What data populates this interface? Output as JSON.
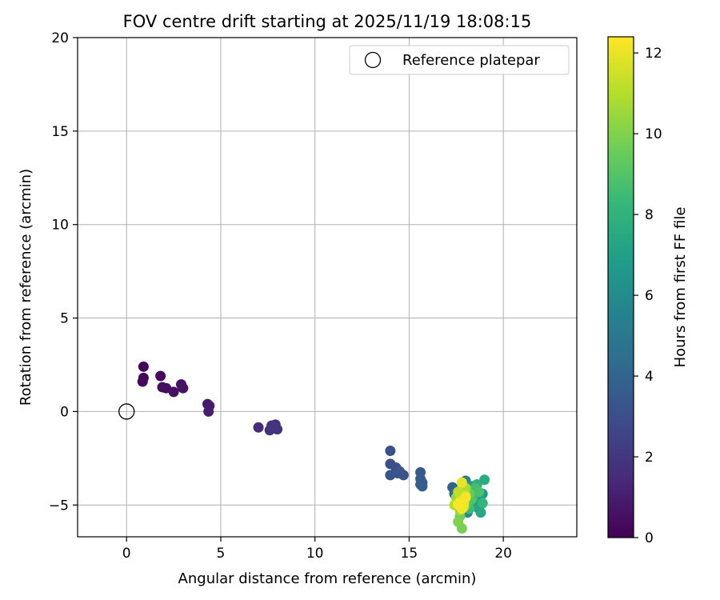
{
  "chart_data": {
    "type": "scatter",
    "title": "FOV centre drift starting at 2025/11/19 18:08:15",
    "xlabel": "Angular distance from reference (arcmin)",
    "ylabel": "Rotation from reference (arcmin)",
    "xlim": [
      -2.6,
      23.9
    ],
    "ylim": [
      -6.7,
      20
    ],
    "xticks": [
      0,
      5,
      10,
      15,
      20
    ],
    "yticks": [
      -5,
      0,
      5,
      10,
      15,
      20
    ],
    "grid": true,
    "legend": {
      "placement": "top-right",
      "entries": [
        "Reference platepar"
      ]
    },
    "reference_point": {
      "label": "Reference platepar",
      "x": 0,
      "y": 0
    },
    "colorbar": {
      "label": "Hours from first FF file",
      "range": [
        0,
        12.4
      ],
      "ticks": [
        0,
        2,
        4,
        6,
        8,
        10,
        12
      ],
      "colormap": [
        "#440154",
        "#482878",
        "#3e4989",
        "#31688e",
        "#26828e",
        "#1f9e89",
        "#35b779",
        "#6ece58",
        "#b5de2b",
        "#fde725"
      ]
    },
    "series": [
      {
        "name": "FOV centre drift",
        "points": [
          {
            "x": 0.9,
            "y": 2.4,
            "c": 0.1
          },
          {
            "x": 0.9,
            "y": 1.8,
            "c": 0.2
          },
          {
            "x": 0.85,
            "y": 1.6,
            "c": 0.25
          },
          {
            "x": 1.8,
            "y": 1.9,
            "c": 0.4
          },
          {
            "x": 1.9,
            "y": 1.3,
            "c": 0.45
          },
          {
            "x": 2.1,
            "y": 1.25,
            "c": 0.5
          },
          {
            "x": 2.5,
            "y": 1.05,
            "c": 0.55
          },
          {
            "x": 2.9,
            "y": 1.45,
            "c": 0.6
          },
          {
            "x": 3.0,
            "y": 1.25,
            "c": 0.65
          },
          {
            "x": 4.3,
            "y": 0.4,
            "c": 0.9
          },
          {
            "x": 4.4,
            "y": 0.3,
            "c": 0.95
          },
          {
            "x": 4.35,
            "y": 0.0,
            "c": 1.0
          },
          {
            "x": 7.0,
            "y": -0.85,
            "c": 1.6
          },
          {
            "x": 7.6,
            "y": -1.0,
            "c": 1.7
          },
          {
            "x": 7.7,
            "y": -0.75,
            "c": 1.75
          },
          {
            "x": 7.9,
            "y": -0.7,
            "c": 1.8
          },
          {
            "x": 8.0,
            "y": -0.95,
            "c": 1.85
          },
          {
            "x": 7.8,
            "y": -0.85,
            "c": 1.9
          },
          {
            "x": 14.0,
            "y": -2.1,
            "c": 3.0
          },
          {
            "x": 14.0,
            "y": -2.8,
            "c": 3.05
          },
          {
            "x": 14.3,
            "y": -3.0,
            "c": 3.1
          },
          {
            "x": 14.4,
            "y": -3.3,
            "c": 3.15
          },
          {
            "x": 14.7,
            "y": -3.4,
            "c": 3.2
          },
          {
            "x": 14.0,
            "y": -3.4,
            "c": 3.25
          },
          {
            "x": 14.5,
            "y": -3.2,
            "c": 3.3
          },
          {
            "x": 15.6,
            "y": -3.25,
            "c": 3.5
          },
          {
            "x": 15.6,
            "y": -3.6,
            "c": 3.55
          },
          {
            "x": 15.7,
            "y": -3.8,
            "c": 3.6
          },
          {
            "x": 15.6,
            "y": -3.9,
            "c": 3.65
          },
          {
            "x": 15.7,
            "y": -4.0,
            "c": 3.7
          },
          {
            "x": 17.3,
            "y": -4.05,
            "c": 4.0
          },
          {
            "x": 17.4,
            "y": -4.4,
            "c": 4.2
          },
          {
            "x": 17.6,
            "y": -4.6,
            "c": 4.5
          },
          {
            "x": 17.8,
            "y": -4.2,
            "c": 4.8
          },
          {
            "x": 18.2,
            "y": -4.9,
            "c": 5.0
          },
          {
            "x": 18.4,
            "y": -4.3,
            "c": 5.2
          },
          {
            "x": 18.0,
            "y": -3.7,
            "c": 5.5
          },
          {
            "x": 18.1,
            "y": -5.4,
            "c": 5.8
          },
          {
            "x": 18.6,
            "y": -4.8,
            "c": 6.0
          },
          {
            "x": 18.7,
            "y": -5.2,
            "c": 6.3
          },
          {
            "x": 18.3,
            "y": -4.0,
            "c": 6.6
          },
          {
            "x": 18.9,
            "y": -4.4,
            "c": 6.9
          },
          {
            "x": 18.5,
            "y": -5.0,
            "c": 7.2
          },
          {
            "x": 18.8,
            "y": -5.4,
            "c": 7.4
          },
          {
            "x": 19.0,
            "y": -3.65,
            "c": 7.6
          },
          {
            "x": 18.6,
            "y": -3.9,
            "c": 7.8
          },
          {
            "x": 18.4,
            "y": -4.6,
            "c": 8.0
          },
          {
            "x": 18.9,
            "y": -4.9,
            "c": 8.2
          },
          {
            "x": 18.2,
            "y": -5.2,
            "c": 8.4
          },
          {
            "x": 18.5,
            "y": -4.1,
            "c": 8.6
          },
          {
            "x": 18.7,
            "y": -4.3,
            "c": 8.8
          },
          {
            "x": 18.3,
            "y": -4.7,
            "c": 9.0
          },
          {
            "x": 18.0,
            "y": -5.0,
            "c": 9.2
          },
          {
            "x": 18.2,
            "y": -4.4,
            "c": 9.4
          },
          {
            "x": 17.7,
            "y": -5.6,
            "c": 9.6
          },
          {
            "x": 17.8,
            "y": -6.25,
            "c": 9.8
          },
          {
            "x": 17.6,
            "y": -5.9,
            "c": 10.0
          },
          {
            "x": 17.9,
            "y": -4.8,
            "c": 10.2
          },
          {
            "x": 17.5,
            "y": -4.6,
            "c": 10.4
          },
          {
            "x": 17.7,
            "y": -5.3,
            "c": 10.6
          },
          {
            "x": 18.0,
            "y": -4.1,
            "c": 10.8
          },
          {
            "x": 17.4,
            "y": -5.0,
            "c": 11.0
          },
          {
            "x": 17.6,
            "y": -4.3,
            "c": 11.2
          },
          {
            "x": 17.9,
            "y": -5.1,
            "c": 11.4
          },
          {
            "x": 18.0,
            "y": -4.5,
            "c": 11.6
          },
          {
            "x": 17.7,
            "y": -4.8,
            "c": 11.8
          },
          {
            "x": 17.8,
            "y": -3.8,
            "c": 12.0
          },
          {
            "x": 17.9,
            "y": -4.9,
            "c": 12.1
          },
          {
            "x": 17.8,
            "y": -5.2,
            "c": 12.2
          },
          {
            "x": 18.0,
            "y": -4.6,
            "c": 12.3
          },
          {
            "x": 17.6,
            "y": -4.95,
            "c": 12.35
          }
        ]
      }
    ]
  }
}
